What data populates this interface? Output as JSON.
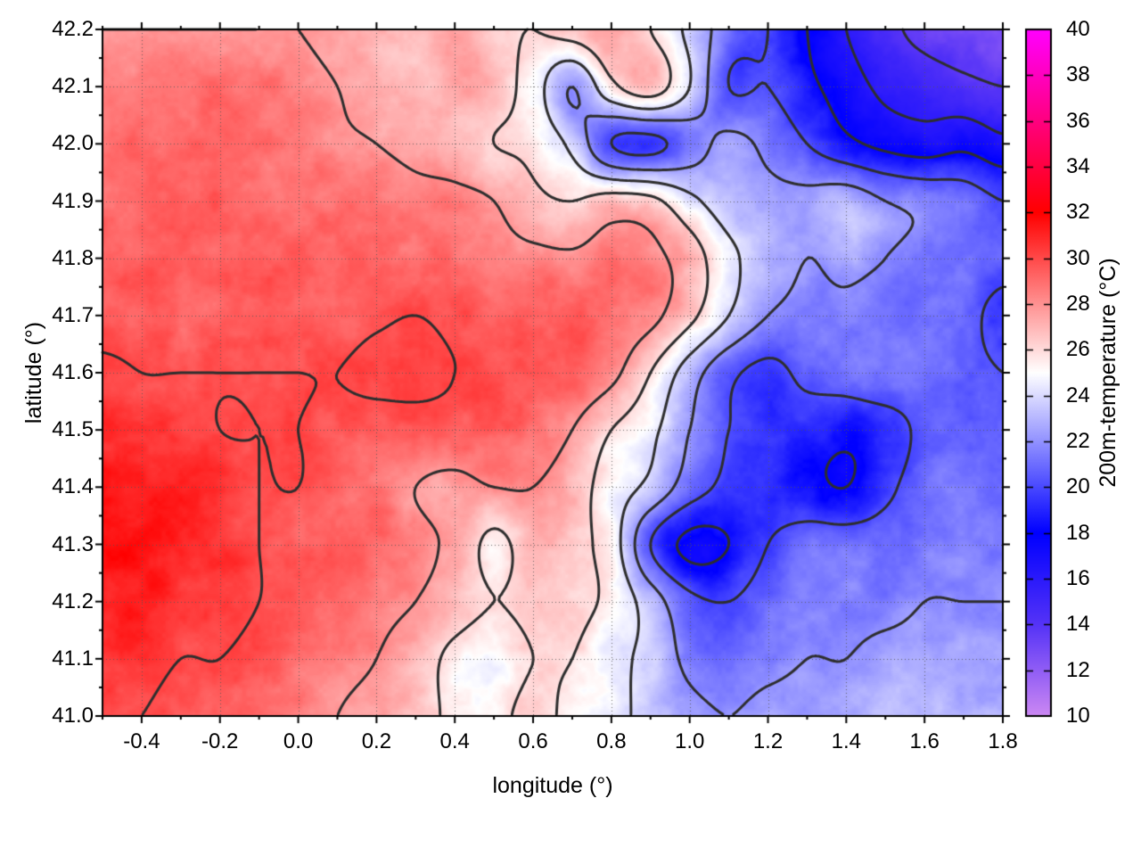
{
  "figure": {
    "background": "#ffffff",
    "x_axis": {
      "label": "longitude (°)",
      "min": -0.5,
      "max": 1.8,
      "tick_values": [
        -0.4,
        -0.2,
        0.0,
        0.2,
        0.4,
        0.6,
        0.8,
        1.0,
        1.2,
        1.4,
        1.6,
        1.8
      ],
      "tick_labels": [
        "-0.4",
        "-0.2",
        "0.0",
        "0.2",
        "0.4",
        "0.6",
        "0.8",
        "1.0",
        "1.2",
        "1.4",
        "1.6",
        "1.8"
      ],
      "minor_tick_step": 0.1
    },
    "y_axis": {
      "label": "latitude (°)",
      "min": 41.0,
      "max": 42.2,
      "tick_values": [
        41.0,
        41.1,
        41.2,
        41.3,
        41.4,
        41.5,
        41.6,
        41.7,
        41.8,
        41.9,
        42.0,
        42.1,
        42.2
      ],
      "tick_labels": [
        "41.0",
        "41.1",
        "41.2",
        "41.3",
        "41.4",
        "41.5",
        "41.6",
        "41.7",
        "41.8",
        "41.9",
        "42.0",
        "42.1",
        "42.2"
      ],
      "minor_tick_step": 0.05
    },
    "colorbar": {
      "label": "200m-temperature (°C)",
      "min": 10,
      "max": 40,
      "tick_values": [
        10,
        12,
        14,
        16,
        18,
        20,
        22,
        24,
        26,
        28,
        30,
        32,
        34,
        36,
        38,
        40
      ],
      "tick_labels": [
        "10",
        "12",
        "14",
        "16",
        "18",
        "20",
        "22",
        "24",
        "26",
        "28",
        "30",
        "32",
        "34",
        "36",
        "38",
        "40"
      ]
    }
  },
  "chart_data": {
    "type": "heatmap",
    "title": "",
    "xlabel": "longitude (°)",
    "ylabel": "latitude (°)",
    "zlabel": "200m-temperature (°C)",
    "x_range": [
      -0.5,
      1.8
    ],
    "y_range": [
      41.0,
      42.2
    ],
    "z_range": [
      10,
      40
    ],
    "grid_on": true,
    "grid_line_color": "#555555",
    "contour_levels": [
      12,
      14,
      16,
      18,
      20,
      22,
      24,
      26,
      28,
      30
    ],
    "contour_color": "#2e2e2e",
    "contour_line_width": 3,
    "texture_noise_amplitude_c": 0.8,
    "palette": [
      {
        "value": 10,
        "color": "#cc88f3"
      },
      {
        "value": 14,
        "color": "#5533f7"
      },
      {
        "value": 18,
        "color": "#0000ff"
      },
      {
        "value": 25,
        "color": "#ffffff"
      },
      {
        "value": 32,
        "color": "#ff0000"
      },
      {
        "value": 40,
        "color": "#ff00ff"
      }
    ],
    "grid_lon": [
      -0.5,
      -0.4,
      -0.3,
      -0.2,
      -0.1,
      0.0,
      0.1,
      0.2,
      0.3,
      0.4,
      0.5,
      0.6,
      0.7,
      0.8,
      0.9,
      1.0,
      1.1,
      1.2,
      1.3,
      1.4,
      1.5,
      1.6,
      1.7,
      1.8
    ],
    "grid_lat_north_to_south": [
      42.2,
      42.1,
      42.0,
      41.9,
      41.8,
      41.7,
      41.6,
      41.5,
      41.4,
      41.3,
      41.2,
      41.1,
      41.0
    ],
    "temperature_c": [
      [
        28,
        28,
        28,
        28,
        28,
        28,
        27.5,
        27.2,
        26.5,
        27.5,
        26.5,
        26,
        26.8,
        27.5,
        26,
        23.5,
        21,
        20,
        18,
        16,
        14.5,
        13.5,
        13,
        12.5
      ],
      [
        28.5,
        28.8,
        29,
        29,
        28.8,
        28.5,
        28,
        27.5,
        26.8,
        27.5,
        27,
        25,
        22,
        25.5,
        27,
        24,
        20,
        20,
        18.5,
        17,
        15.5,
        15,
        14.5,
        14
      ],
      [
        28.8,
        29,
        29,
        29,
        28.8,
        28.5,
        28.2,
        28,
        27.5,
        27,
        26,
        25.5,
        23.5,
        20,
        19.5,
        21,
        22.5,
        21.5,
        20,
        18.5,
        17.5,
        17,
        17.5,
        16.5
      ],
      [
        29,
        29.2,
        29.3,
        29.3,
        29.2,
        29,
        29,
        28.8,
        28.5,
        28.5,
        28,
        26.5,
        26,
        26.8,
        26.5,
        24.5,
        23,
        22.5,
        22.5,
        23,
        22,
        21.5,
        21,
        20
      ],
      [
        29.3,
        29.5,
        29.5,
        29.5,
        29.5,
        29.4,
        29.3,
        29.2,
        29,
        29,
        28.7,
        28.5,
        28.3,
        28.8,
        28.5,
        27,
        24.5,
        23,
        22,
        22.5,
        22,
        21.5,
        21,
        20.5
      ],
      [
        29.5,
        29.5,
        29.2,
        29.5,
        29.5,
        29.5,
        29.5,
        29.8,
        30,
        29.7,
        29.5,
        29.5,
        29.4,
        29,
        28.5,
        26.5,
        24,
        22,
        21.5,
        21.5,
        21,
        21,
        20.5,
        19.5
      ],
      [
        30.3,
        30,
        30,
        30,
        30,
        30,
        30,
        30.3,
        30.3,
        30,
        29.7,
        29.5,
        29.4,
        28.5,
        26,
        23,
        20.5,
        19.5,
        20.5,
        21,
        21.5,
        21,
        20.5,
        20
      ],
      [
        31,
        30.5,
        30.5,
        30,
        30,
        30,
        29.7,
        29.5,
        29.5,
        29.5,
        29.5,
        29,
        28,
        26,
        24.5,
        22,
        20,
        19.5,
        19,
        18.5,
        19,
        20.5,
        21,
        20.5
      ],
      [
        31.3,
        31,
        31,
        30.5,
        30,
        30,
        29.5,
        29,
        28,
        27.5,
        28,
        28,
        27,
        25,
        23.5,
        21,
        19.5,
        19,
        18.5,
        18,
        19.5,
        21,
        21.5,
        21
      ],
      [
        31.5,
        31.5,
        31,
        30.5,
        30,
        29.5,
        29.5,
        29,
        28.5,
        27.5,
        25.5,
        27,
        26.5,
        25,
        20,
        17.5,
        18,
        20,
        21,
        21,
        21,
        21.5,
        21.5,
        21.5
      ],
      [
        31.3,
        31,
        30.5,
        30.5,
        30,
        29.5,
        29,
        28.5,
        28,
        27,
        26,
        26.5,
        26.5,
        25.5,
        23,
        20.5,
        20,
        21,
        21.5,
        21.5,
        21.5,
        22,
        22,
        22
      ],
      [
        30.5,
        30.5,
        30,
        30,
        29.5,
        29,
        28.5,
        28,
        27,
        25.5,
        25,
        26,
        26,
        24.5,
        23.5,
        21.5,
        21,
        21.5,
        22,
        22,
        22.5,
        22.5,
        22.5,
        22.5
      ],
      [
        30,
        30,
        29.5,
        29.5,
        29,
        28.5,
        28,
        27.5,
        27,
        25.5,
        25.5,
        26.5,
        25.5,
        24.5,
        23.5,
        22.5,
        22,
        22.5,
        22.5,
        22.5,
        23,
        23,
        23,
        23
      ]
    ]
  }
}
